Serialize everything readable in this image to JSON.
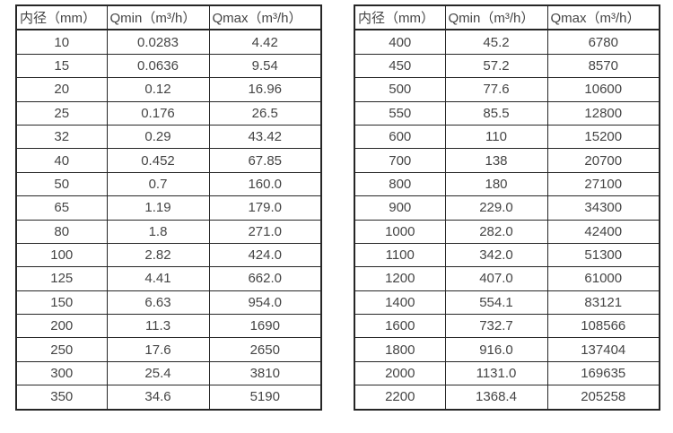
{
  "tables": [
    {
      "name": "small-diameter-flow-table",
      "headers": [
        "内径（mm）",
        "Qmin（m³/h）",
        "Qmax（m³/h）"
      ],
      "rows": [
        [
          "10",
          "0.0283",
          "4.42"
        ],
        [
          "15",
          "0.0636",
          "9.54"
        ],
        [
          "20",
          "0.12",
          "16.96"
        ],
        [
          "25",
          "0.176",
          "26.5"
        ],
        [
          "32",
          "0.29",
          "43.42"
        ],
        [
          "40",
          "0.452",
          "67.85"
        ],
        [
          "50",
          "0.7",
          "160.0"
        ],
        [
          "65",
          "1.19",
          "179.0"
        ],
        [
          "80",
          "1.8",
          "271.0"
        ],
        [
          "100",
          "2.82",
          "424.0"
        ],
        [
          "125",
          "4.41",
          "662.0"
        ],
        [
          "150",
          "6.63",
          "954.0"
        ],
        [
          "200",
          "11.3",
          "1690"
        ],
        [
          "250",
          "17.6",
          "2650"
        ],
        [
          "300",
          "25.4",
          "3810"
        ],
        [
          "350",
          "34.6",
          "5190"
        ]
      ]
    },
    {
      "name": "large-diameter-flow-table",
      "headers": [
        "内径（mm）",
        "Qmin（m³/h）",
        "Qmax（m³/h）"
      ],
      "rows": [
        [
          "400",
          "45.2",
          "6780"
        ],
        [
          "450",
          "57.2",
          "8570"
        ],
        [
          "500",
          "77.6",
          "10600"
        ],
        [
          "550",
          "85.5",
          "12800"
        ],
        [
          "600",
          "110",
          "15200"
        ],
        [
          "700",
          "138",
          "20700"
        ],
        [
          "800",
          "180",
          "27100"
        ],
        [
          "900",
          "229.0",
          "34300"
        ],
        [
          "1000",
          "282.0",
          "42400"
        ],
        [
          "1100",
          "342.0",
          "51300"
        ],
        [
          "1200",
          "407.0",
          "61000"
        ],
        [
          "1400",
          "554.1",
          "83121"
        ],
        [
          "1600",
          "732.7",
          "108566"
        ],
        [
          "1800",
          "916.0",
          "137404"
        ],
        [
          "2000",
          "1131.0",
          "169635"
        ],
        [
          "2200",
          "1368.4",
          "205258"
        ]
      ]
    }
  ]
}
